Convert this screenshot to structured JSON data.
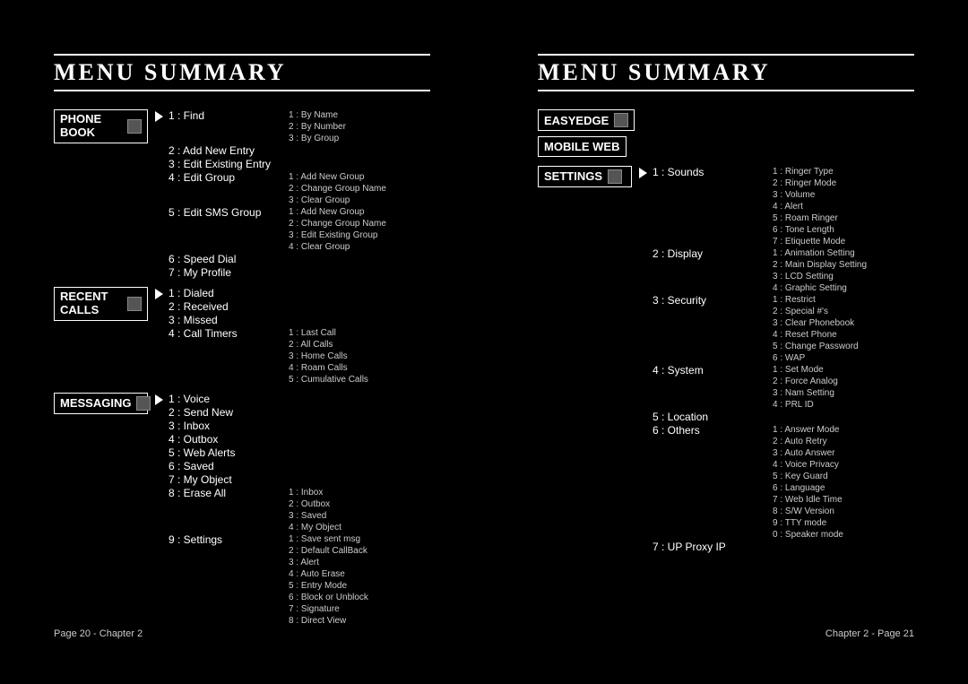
{
  "title": "MENU SUMMARY",
  "left_page": {
    "footer": "Page 20 - Chapter 2",
    "sections": [
      {
        "label": "PHONE BOOK",
        "has_icon": true,
        "items": [
          {
            "n": "1",
            "t": "Find",
            "sub": [
              {
                "n": "1",
                "t": "By Name"
              },
              {
                "n": "2",
                "t": "By Number"
              },
              {
                "n": "3",
                "t": "By Group"
              }
            ]
          },
          {
            "n": "2",
            "t": "Add New Entry",
            "sub": []
          },
          {
            "n": "3",
            "t": "Edit Existing Entry",
            "sub": []
          },
          {
            "n": "4",
            "t": "Edit Group",
            "sub": [
              {
                "n": "1",
                "t": "Add New Group"
              },
              {
                "n": "2",
                "t": "Change Group Name"
              },
              {
                "n": "3",
                "t": "Clear Group"
              }
            ]
          },
          {
            "n": "5",
            "t": "Edit SMS Group",
            "sub": [
              {
                "n": "1",
                "t": "Add New Group"
              },
              {
                "n": "2",
                "t": "Change Group Name"
              },
              {
                "n": "3",
                "t": "Edit Existing Group"
              },
              {
                "n": "4",
                "t": "Clear Group"
              }
            ]
          },
          {
            "n": "6",
            "t": "Speed Dial",
            "sub": []
          },
          {
            "n": "7",
            "t": "My Profile",
            "sub": []
          }
        ]
      },
      {
        "label": "RECENT CALLS",
        "has_icon": true,
        "items": [
          {
            "n": "1",
            "t": "Dialed",
            "sub": []
          },
          {
            "n": "2",
            "t": "Received",
            "sub": []
          },
          {
            "n": "3",
            "t": "Missed",
            "sub": []
          },
          {
            "n": "4",
            "t": "Call Timers",
            "sub": [
              {
                "n": "1",
                "t": "Last Call"
              },
              {
                "n": "2",
                "t": "All Calls"
              },
              {
                "n": "3",
                "t": "Home Calls"
              },
              {
                "n": "4",
                "t": "Roam Calls"
              },
              {
                "n": "5",
                "t": "Cumulative Calls"
              }
            ]
          }
        ]
      },
      {
        "label": "MESSAGING",
        "has_icon": true,
        "items": [
          {
            "n": "1",
            "t": "Voice",
            "sub": []
          },
          {
            "n": "2",
            "t": "Send New",
            "sub": []
          },
          {
            "n": "3",
            "t": "Inbox",
            "sub": []
          },
          {
            "n": "4",
            "t": "Outbox",
            "sub": []
          },
          {
            "n": "5",
            "t": "Web Alerts",
            "sub": []
          },
          {
            "n": "6",
            "t": "Saved",
            "sub": []
          },
          {
            "n": "7",
            "t": "My Object",
            "sub": []
          },
          {
            "n": "8",
            "t": "Erase All",
            "sub": [
              {
                "n": "1",
                "t": "Inbox"
              },
              {
                "n": "2",
                "t": "Outbox"
              },
              {
                "n": "3",
                "t": "Saved"
              },
              {
                "n": "4",
                "t": "My Object"
              }
            ]
          },
          {
            "n": "9",
            "t": "Settings",
            "sub": [
              {
                "n": "1",
                "t": "Save sent msg"
              },
              {
                "n": "2",
                "t": "Default CallBack"
              },
              {
                "n": "3",
                "t": "Alert"
              },
              {
                "n": "4",
                "t": "Auto Erase"
              },
              {
                "n": "5",
                "t": "Entry Mode"
              },
              {
                "n": "6",
                "t": "Block or Unblock"
              },
              {
                "n": "7",
                "t": "Signature"
              },
              {
                "n": "8",
                "t": "Direct View"
              }
            ]
          }
        ]
      }
    ]
  },
  "right_page": {
    "footer": "Chapter 2 - Page 21",
    "top_labels": [
      {
        "label": "EASYEDGE",
        "has_icon": true
      },
      {
        "label": "MOBILE WEB",
        "has_icon": false
      }
    ],
    "sections": [
      {
        "label": "SETTINGS",
        "has_icon": true,
        "items": [
          {
            "n": "1",
            "t": "Sounds",
            "sub": [
              {
                "n": "1",
                "t": "Ringer Type"
              },
              {
                "n": "2",
                "t": "Ringer Mode"
              },
              {
                "n": "3",
                "t": "Volume"
              },
              {
                "n": "4",
                "t": "Alert"
              },
              {
                "n": "5",
                "t": "Roam Ringer"
              },
              {
                "n": "6",
                "t": "Tone Length"
              },
              {
                "n": "7",
                "t": "Etiquette Mode"
              }
            ]
          },
          {
            "n": "2",
            "t": "Display",
            "sub": [
              {
                "n": "1",
                "t": "Animation Setting"
              },
              {
                "n": "2",
                "t": "Main Display Setting"
              },
              {
                "n": "3",
                "t": "LCD Setting"
              },
              {
                "n": "4",
                "t": "Graphic Setting"
              }
            ]
          },
          {
            "n": "3",
            "t": "Security",
            "sub": [
              {
                "n": "1",
                "t": "Restrict"
              },
              {
                "n": "2",
                "t": "Special #'s"
              },
              {
                "n": "3",
                "t": "Clear Phonebook"
              },
              {
                "n": "4",
                "t": "Reset Phone"
              },
              {
                "n": "5",
                "t": "Change Password"
              },
              {
                "n": "6",
                "t": "WAP"
              }
            ]
          },
          {
            "n": "4",
            "t": "System",
            "sub": [
              {
                "n": "1",
                "t": "Set Mode"
              },
              {
                "n": "2",
                "t": "Force Analog"
              },
              {
                "n": "3",
                "t": "Nam Setting"
              },
              {
                "n": "4",
                "t": "PRL ID"
              }
            ]
          },
          {
            "n": "5",
            "t": "Location",
            "sub": []
          },
          {
            "n": "6",
            "t": "Others",
            "sub": [
              {
                "n": "1",
                "t": "Answer Mode"
              },
              {
                "n": "2",
                "t": "Auto Retry"
              },
              {
                "n": "3",
                "t": "Auto Answer"
              },
              {
                "n": "4",
                "t": "Voice Privacy"
              },
              {
                "n": "5",
                "t": "Key Guard"
              },
              {
                "n": "6",
                "t": "Language"
              },
              {
                "n": "7",
                "t": "Web Idle Time"
              },
              {
                "n": "8",
                "t": "S/W Version"
              },
              {
                "n": "9",
                "t": "TTY mode"
              },
              {
                "n": "0",
                "t": "Speaker mode"
              }
            ]
          },
          {
            "n": "7",
            "t": "UP Proxy IP",
            "sub": []
          }
        ]
      }
    ]
  }
}
